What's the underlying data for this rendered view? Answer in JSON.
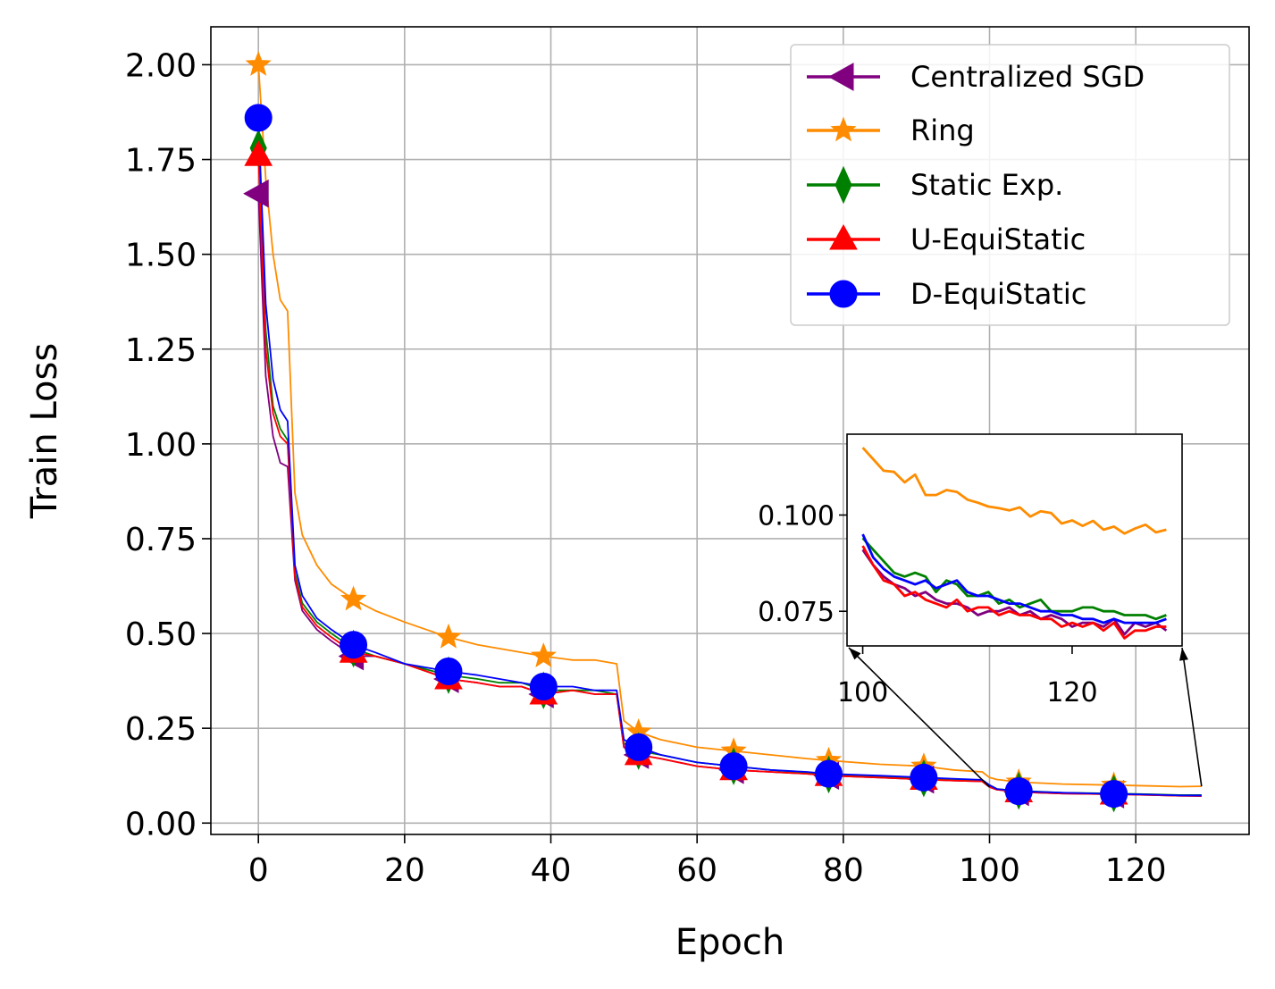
{
  "chart_data": [
    {
      "type": "line",
      "xlabel": "Epoch",
      "ylabel": "Train Loss",
      "xlim": [
        -6.5,
        135.5
      ],
      "ylim": [
        -0.03,
        2.1
      ],
      "xticks": [
        0,
        20,
        40,
        60,
        80,
        100,
        120
      ],
      "xtick_labels": [
        "0",
        "20",
        "40",
        "60",
        "80",
        "100",
        "120"
      ],
      "yticks": [
        0,
        0.25,
        0.5,
        0.75,
        1.0,
        1.25,
        1.5,
        1.75,
        2.0
      ],
      "ytick_labels": [
        "0.00",
        "0.25",
        "0.50",
        "0.75",
        "1.00",
        "1.25",
        "1.50",
        "1.75",
        "2.00"
      ],
      "grid": true,
      "legend_position": "top-right",
      "marker_epochs": [
        0,
        13,
        26,
        39,
        52,
        65,
        78,
        91,
        104,
        117
      ],
      "series": [
        {
          "name": "Centralized SGD",
          "color": "#800080",
          "marker": "triangle-left",
          "x": [
            0,
            1,
            2,
            3,
            4,
            5,
            6,
            8,
            10,
            13,
            16,
            20,
            26,
            30,
            33,
            36,
            39,
            43,
            46,
            49,
            50,
            52,
            55,
            60,
            65,
            70,
            75,
            78,
            85,
            91,
            95,
            99,
            100,
            101,
            104,
            110,
            117,
            122,
            126,
            129
          ],
          "y": [
            1.66,
            1.18,
            1.02,
            0.95,
            0.94,
            0.64,
            0.56,
            0.51,
            0.48,
            0.44,
            0.44,
            0.42,
            0.38,
            0.37,
            0.36,
            0.36,
            0.34,
            0.35,
            0.34,
            0.34,
            0.2,
            0.18,
            0.17,
            0.15,
            0.14,
            0.135,
            0.13,
            0.125,
            0.12,
            0.115,
            0.112,
            0.11,
            0.095,
            0.088,
            0.082,
            0.078,
            0.076,
            0.074,
            0.072,
            0.071
          ]
        },
        {
          "name": "Ring",
          "color": "#ff8c00",
          "marker": "star",
          "x": [
            0,
            1,
            2,
            3,
            4,
            5,
            6,
            8,
            10,
            13,
            16,
            20,
            26,
            30,
            33,
            36,
            39,
            43,
            46,
            49,
            50,
            52,
            55,
            60,
            65,
            70,
            75,
            78,
            85,
            91,
            95,
            99,
            100,
            101,
            104,
            110,
            117,
            122,
            126,
            129
          ],
          "y": [
            2.0,
            1.7,
            1.5,
            1.38,
            1.35,
            0.87,
            0.76,
            0.68,
            0.63,
            0.59,
            0.56,
            0.53,
            0.49,
            0.47,
            0.46,
            0.45,
            0.44,
            0.43,
            0.43,
            0.42,
            0.27,
            0.24,
            0.22,
            0.2,
            0.19,
            0.18,
            0.17,
            0.165,
            0.155,
            0.15,
            0.14,
            0.135,
            0.12,
            0.115,
            0.108,
            0.103,
            0.1,
            0.098,
            0.096,
            0.097
          ]
        },
        {
          "name": "Static Exp.",
          "color": "#008000",
          "marker": "thin-diamond",
          "x": [
            0,
            1,
            2,
            3,
            4,
            5,
            6,
            8,
            10,
            13,
            16,
            20,
            26,
            30,
            33,
            36,
            39,
            43,
            46,
            49,
            50,
            52,
            55,
            60,
            65,
            70,
            75,
            78,
            85,
            91,
            95,
            99,
            100,
            101,
            104,
            110,
            117,
            122,
            126,
            129
          ],
          "y": [
            1.78,
            1.3,
            1.1,
            1.04,
            1.01,
            0.66,
            0.58,
            0.53,
            0.5,
            0.46,
            0.44,
            0.42,
            0.39,
            0.38,
            0.37,
            0.37,
            0.35,
            0.35,
            0.35,
            0.34,
            0.21,
            0.19,
            0.18,
            0.16,
            0.15,
            0.14,
            0.133,
            0.128,
            0.122,
            0.118,
            0.115,
            0.112,
            0.1,
            0.09,
            0.085,
            0.08,
            0.078,
            0.076,
            0.074,
            0.074
          ]
        },
        {
          "name": "U-EquiStatic",
          "color": "#ff0000",
          "marker": "triangle-up",
          "x": [
            0,
            1,
            2,
            3,
            4,
            5,
            6,
            8,
            10,
            13,
            16,
            20,
            26,
            30,
            33,
            36,
            39,
            43,
            46,
            49,
            50,
            52,
            55,
            60,
            65,
            70,
            75,
            78,
            85,
            91,
            95,
            99,
            100,
            101,
            104,
            110,
            117,
            122,
            126,
            129
          ],
          "y": [
            1.76,
            1.25,
            1.08,
            1.02,
            1.0,
            0.65,
            0.57,
            0.52,
            0.49,
            0.45,
            0.44,
            0.42,
            0.38,
            0.37,
            0.36,
            0.36,
            0.34,
            0.35,
            0.34,
            0.34,
            0.2,
            0.18,
            0.17,
            0.15,
            0.14,
            0.135,
            0.13,
            0.125,
            0.12,
            0.115,
            0.112,
            0.11,
            0.095,
            0.088,
            0.082,
            0.078,
            0.076,
            0.074,
            0.072,
            0.072
          ]
        },
        {
          "name": "D-EquiStatic",
          "color": "#0000ff",
          "marker": "circle",
          "x": [
            0,
            1,
            2,
            3,
            4,
            5,
            6,
            8,
            10,
            13,
            16,
            20,
            26,
            30,
            33,
            36,
            39,
            43,
            46,
            49,
            50,
            52,
            55,
            60,
            65,
            70,
            75,
            78,
            85,
            91,
            95,
            99,
            100,
            101,
            104,
            110,
            117,
            122,
            126,
            129
          ],
          "y": [
            1.86,
            1.37,
            1.17,
            1.09,
            1.06,
            0.68,
            0.6,
            0.54,
            0.51,
            0.47,
            0.45,
            0.42,
            0.4,
            0.39,
            0.38,
            0.37,
            0.36,
            0.36,
            0.35,
            0.35,
            0.22,
            0.2,
            0.18,
            0.16,
            0.15,
            0.14,
            0.135,
            0.13,
            0.125,
            0.12,
            0.117,
            0.114,
            0.1,
            0.09,
            0.084,
            0.08,
            0.077,
            0.075,
            0.073,
            0.073
          ]
        }
      ]
    },
    {
      "type": "line",
      "role": "inset",
      "xlim": [
        98.5,
        130.5
      ],
      "ylim": [
        0.066,
        0.121
      ],
      "xticks": [
        100,
        120
      ],
      "xtick_labels": [
        "100",
        "120"
      ],
      "yticks": [
        0.075,
        0.1
      ],
      "ytick_labels": [
        "0.075",
        "0.100"
      ],
      "grid": false,
      "series": [
        {
          "name": "Centralized SGD",
          "color": "#800080",
          "x": [
            100,
            101,
            102,
            103,
            104,
            105,
            106,
            107,
            108,
            109,
            110,
            111,
            112,
            113,
            114,
            115,
            116,
            117,
            118,
            119,
            120,
            121,
            122,
            123,
            124,
            125,
            126,
            127,
            128,
            129
          ],
          "y": [
            0.091,
            0.087,
            0.084,
            0.082,
            0.081,
            0.079,
            0.08,
            0.078,
            0.077,
            0.077,
            0.076,
            0.074,
            0.075,
            0.075,
            0.076,
            0.074,
            0.075,
            0.073,
            0.074,
            0.073,
            0.071,
            0.072,
            0.072,
            0.071,
            0.073,
            0.069,
            0.072,
            0.071,
            0.072,
            0.07
          ]
        },
        {
          "name": "Ring",
          "color": "#ff8c00",
          "x": [
            100,
            101,
            102,
            103,
            104,
            105,
            106,
            107,
            108,
            109,
            110,
            111,
            112,
            113,
            114,
            115,
            116,
            117,
            118,
            119,
            120,
            121,
            122,
            123,
            124,
            125,
            126,
            127,
            128,
            129
          ],
          "y": [
            0.1175,
            0.1145,
            0.1115,
            0.1112,
            0.1085,
            0.1105,
            0.1052,
            0.1052,
            0.1065,
            0.106,
            0.104,
            0.1032,
            0.1022,
            0.1018,
            0.1012,
            0.102,
            0.0996,
            0.101,
            0.1005,
            0.0978,
            0.0986,
            0.0972,
            0.0985,
            0.0962,
            0.097,
            0.0952,
            0.0965,
            0.0975,
            0.0955,
            0.0962
          ]
        },
        {
          "name": "Static Exp.",
          "color": "#008000",
          "x": [
            100,
            101,
            102,
            103,
            104,
            105,
            106,
            107,
            108,
            109,
            110,
            111,
            112,
            113,
            114,
            115,
            116,
            117,
            118,
            119,
            120,
            121,
            122,
            123,
            124,
            125,
            126,
            127,
            128,
            129
          ],
          "y": [
            0.094,
            0.091,
            0.088,
            0.085,
            0.084,
            0.085,
            0.084,
            0.08,
            0.083,
            0.082,
            0.079,
            0.079,
            0.08,
            0.077,
            0.078,
            0.076,
            0.077,
            0.078,
            0.075,
            0.075,
            0.075,
            0.076,
            0.076,
            0.075,
            0.075,
            0.074,
            0.074,
            0.074,
            0.073,
            0.074
          ]
        },
        {
          "name": "U-EquiStatic",
          "color": "#ff0000",
          "x": [
            100,
            101,
            102,
            103,
            104,
            105,
            106,
            107,
            108,
            109,
            110,
            111,
            112,
            113,
            114,
            115,
            116,
            117,
            118,
            119,
            120,
            121,
            122,
            123,
            124,
            125,
            126,
            127,
            128,
            129
          ],
          "y": [
            0.092,
            0.087,
            0.083,
            0.082,
            0.079,
            0.08,
            0.078,
            0.077,
            0.076,
            0.078,
            0.075,
            0.076,
            0.076,
            0.074,
            0.075,
            0.074,
            0.074,
            0.073,
            0.073,
            0.071,
            0.072,
            0.071,
            0.072,
            0.07,
            0.072,
            0.068,
            0.07,
            0.07,
            0.071,
            0.071
          ]
        },
        {
          "name": "D-EquiStatic",
          "color": "#0000ff",
          "x": [
            100,
            101,
            102,
            103,
            104,
            105,
            106,
            107,
            108,
            109,
            110,
            111,
            112,
            113,
            114,
            115,
            116,
            117,
            118,
            119,
            120,
            121,
            122,
            123,
            124,
            125,
            126,
            127,
            128,
            129
          ],
          "y": [
            0.095,
            0.089,
            0.086,
            0.084,
            0.083,
            0.082,
            0.083,
            0.081,
            0.082,
            0.083,
            0.08,
            0.079,
            0.079,
            0.078,
            0.077,
            0.077,
            0.076,
            0.075,
            0.075,
            0.074,
            0.074,
            0.073,
            0.073,
            0.072,
            0.073,
            0.072,
            0.072,
            0.072,
            0.072,
            0.073
          ]
        }
      ]
    }
  ]
}
